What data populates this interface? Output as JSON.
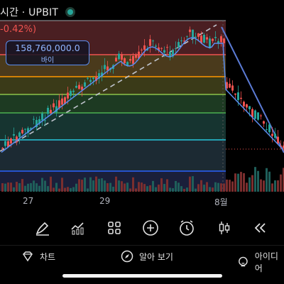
{
  "header": {
    "title": "시간 · UPBIT",
    "change_text": "-0.42%)",
    "live_color": "#26a69a"
  },
  "price_marker": {
    "value": "158,760,000.0",
    "label": "바이"
  },
  "x_axis": {
    "labels": [
      "27",
      "29",
      "8월"
    ]
  },
  "toolbar": {
    "tools": [
      "pen-icon",
      "indicator-icon",
      "grid-icon",
      "add-icon",
      "alarm-icon",
      "candle-icon",
      "rewind-icon"
    ]
  },
  "bottom_nav": {
    "chart_label": "차트",
    "notifications_label": "알아 보기",
    "ideas_label": "아이디어"
  },
  "colors": {
    "up": "#26a69a",
    "down": "#ef5350",
    "fib_red": "#ef5350",
    "fib_orange": "#ff9800",
    "fib_green": "#4caf50",
    "fib_teal": "#26a69a",
    "fib_blue": "#2962ff",
    "trendline": "#5b7bd5",
    "ma_line": "#5b8def"
  },
  "chart_data": {
    "type": "candlestick",
    "description_levels": "fibonacci retracement overlay with colored bands",
    "fib_levels": [
      "red",
      "orange",
      "yellow",
      "green",
      "teal",
      "cyan",
      "blue"
    ],
    "candles_trend": "rising from lower-left to a peak near 8월, then a sharp decline"
  }
}
